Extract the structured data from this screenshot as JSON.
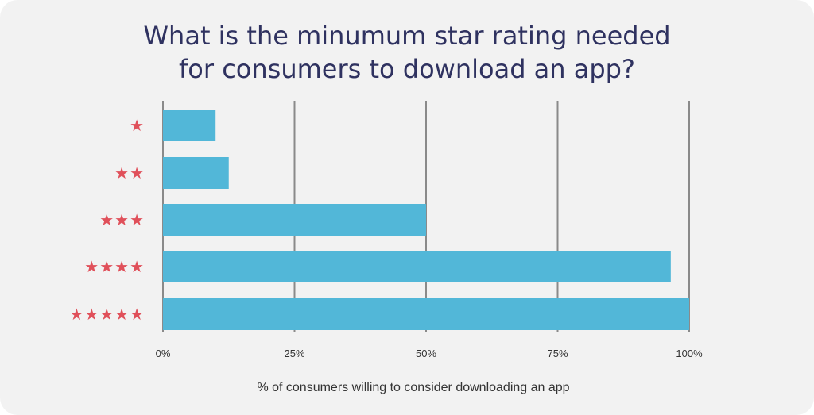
{
  "chart_data": {
    "type": "bar",
    "orientation": "horizontal",
    "title": "What is the minumum star rating needed\nfor consumers to download an app?",
    "xlabel": "% of consumers willing to consider downloading an app",
    "ylabel": "",
    "categories": [
      "★",
      "★★",
      "★★★",
      "★★★★",
      "★★★★★"
    ],
    "values": [
      10,
      12.5,
      50,
      96.5,
      100
    ],
    "xlim": [
      0,
      100
    ],
    "x_ticks": [
      "0%",
      "25%",
      "50%",
      "75%",
      "100%"
    ],
    "x_tick_values": [
      0,
      25,
      50,
      75,
      100
    ],
    "grid": true,
    "colors": {
      "bar": "#52b7d8",
      "stars": "#e0505a",
      "grid": "#8a8a8a",
      "title": "#2f3260",
      "background": "#f2f2f2"
    }
  }
}
